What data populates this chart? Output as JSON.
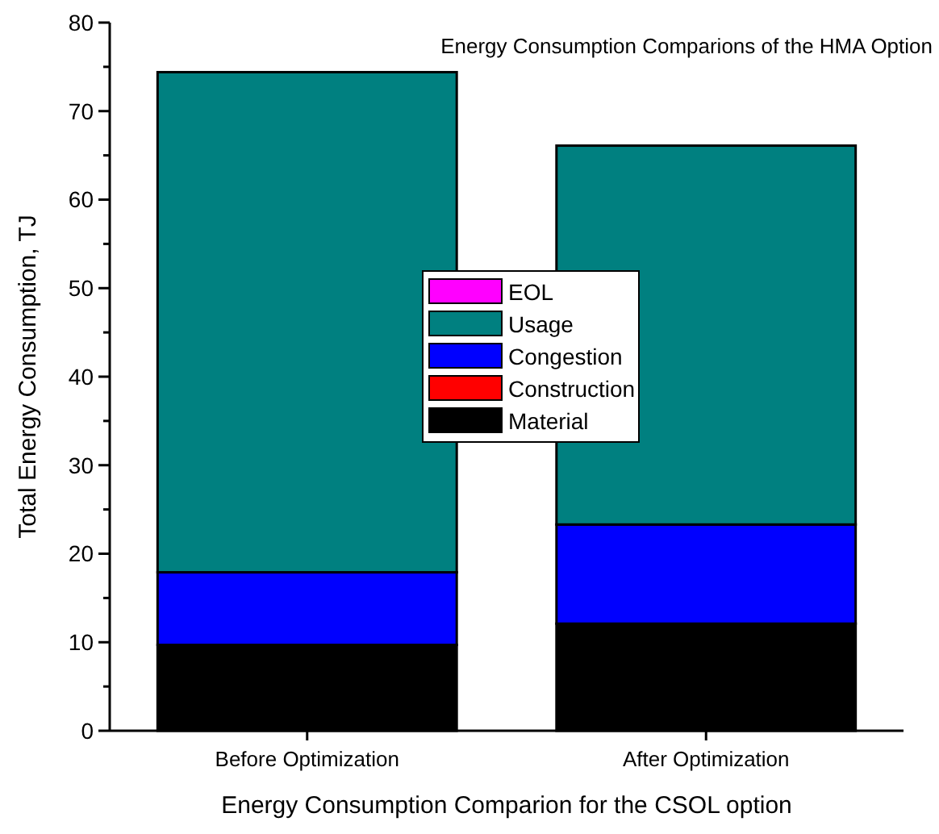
{
  "chart_data": {
    "type": "bar",
    "title": "Energy Consumption Comparions of the HMA Option",
    "xlabel": "Energy Consumption Comparion for the CSOL option",
    "ylabel": "Total Energy Consumption, TJ",
    "categories": [
      "Before Optimization",
      "After Optimization"
    ],
    "stacked": true,
    "series": [
      {
        "name": "Material",
        "color": "#000000",
        "values": [
          9.7,
          12.1
        ]
      },
      {
        "name": "Construction",
        "color": "#ff0000",
        "values": [
          0,
          0
        ]
      },
      {
        "name": "Congestion",
        "color": "#0000ff",
        "values": [
          8.2,
          11.2
        ]
      },
      {
        "name": "Usage",
        "color": "#008080",
        "values": [
          56.5,
          42.8
        ]
      },
      {
        "name": "EOL",
        "color": "#ff00ff",
        "values": [
          0,
          0
        ]
      }
    ],
    "ylim": [
      0,
      80
    ],
    "yticks": [
      0,
      {
        "value": 5,
        "label": null
      },
      10,
      {
        "value": 15,
        "label": null
      },
      20,
      {
        "value": 25,
        "label": null
      },
      30,
      {
        "value": 35,
        "label": null
      },
      40,
      {
        "value": 45,
        "label": null
      },
      50,
      {
        "value": 55,
        "label": null
      },
      60,
      {
        "value": 65,
        "label": null
      },
      70,
      {
        "value": 75,
        "label": null
      },
      80
    ],
    "grid": false,
    "legend": "center"
  }
}
